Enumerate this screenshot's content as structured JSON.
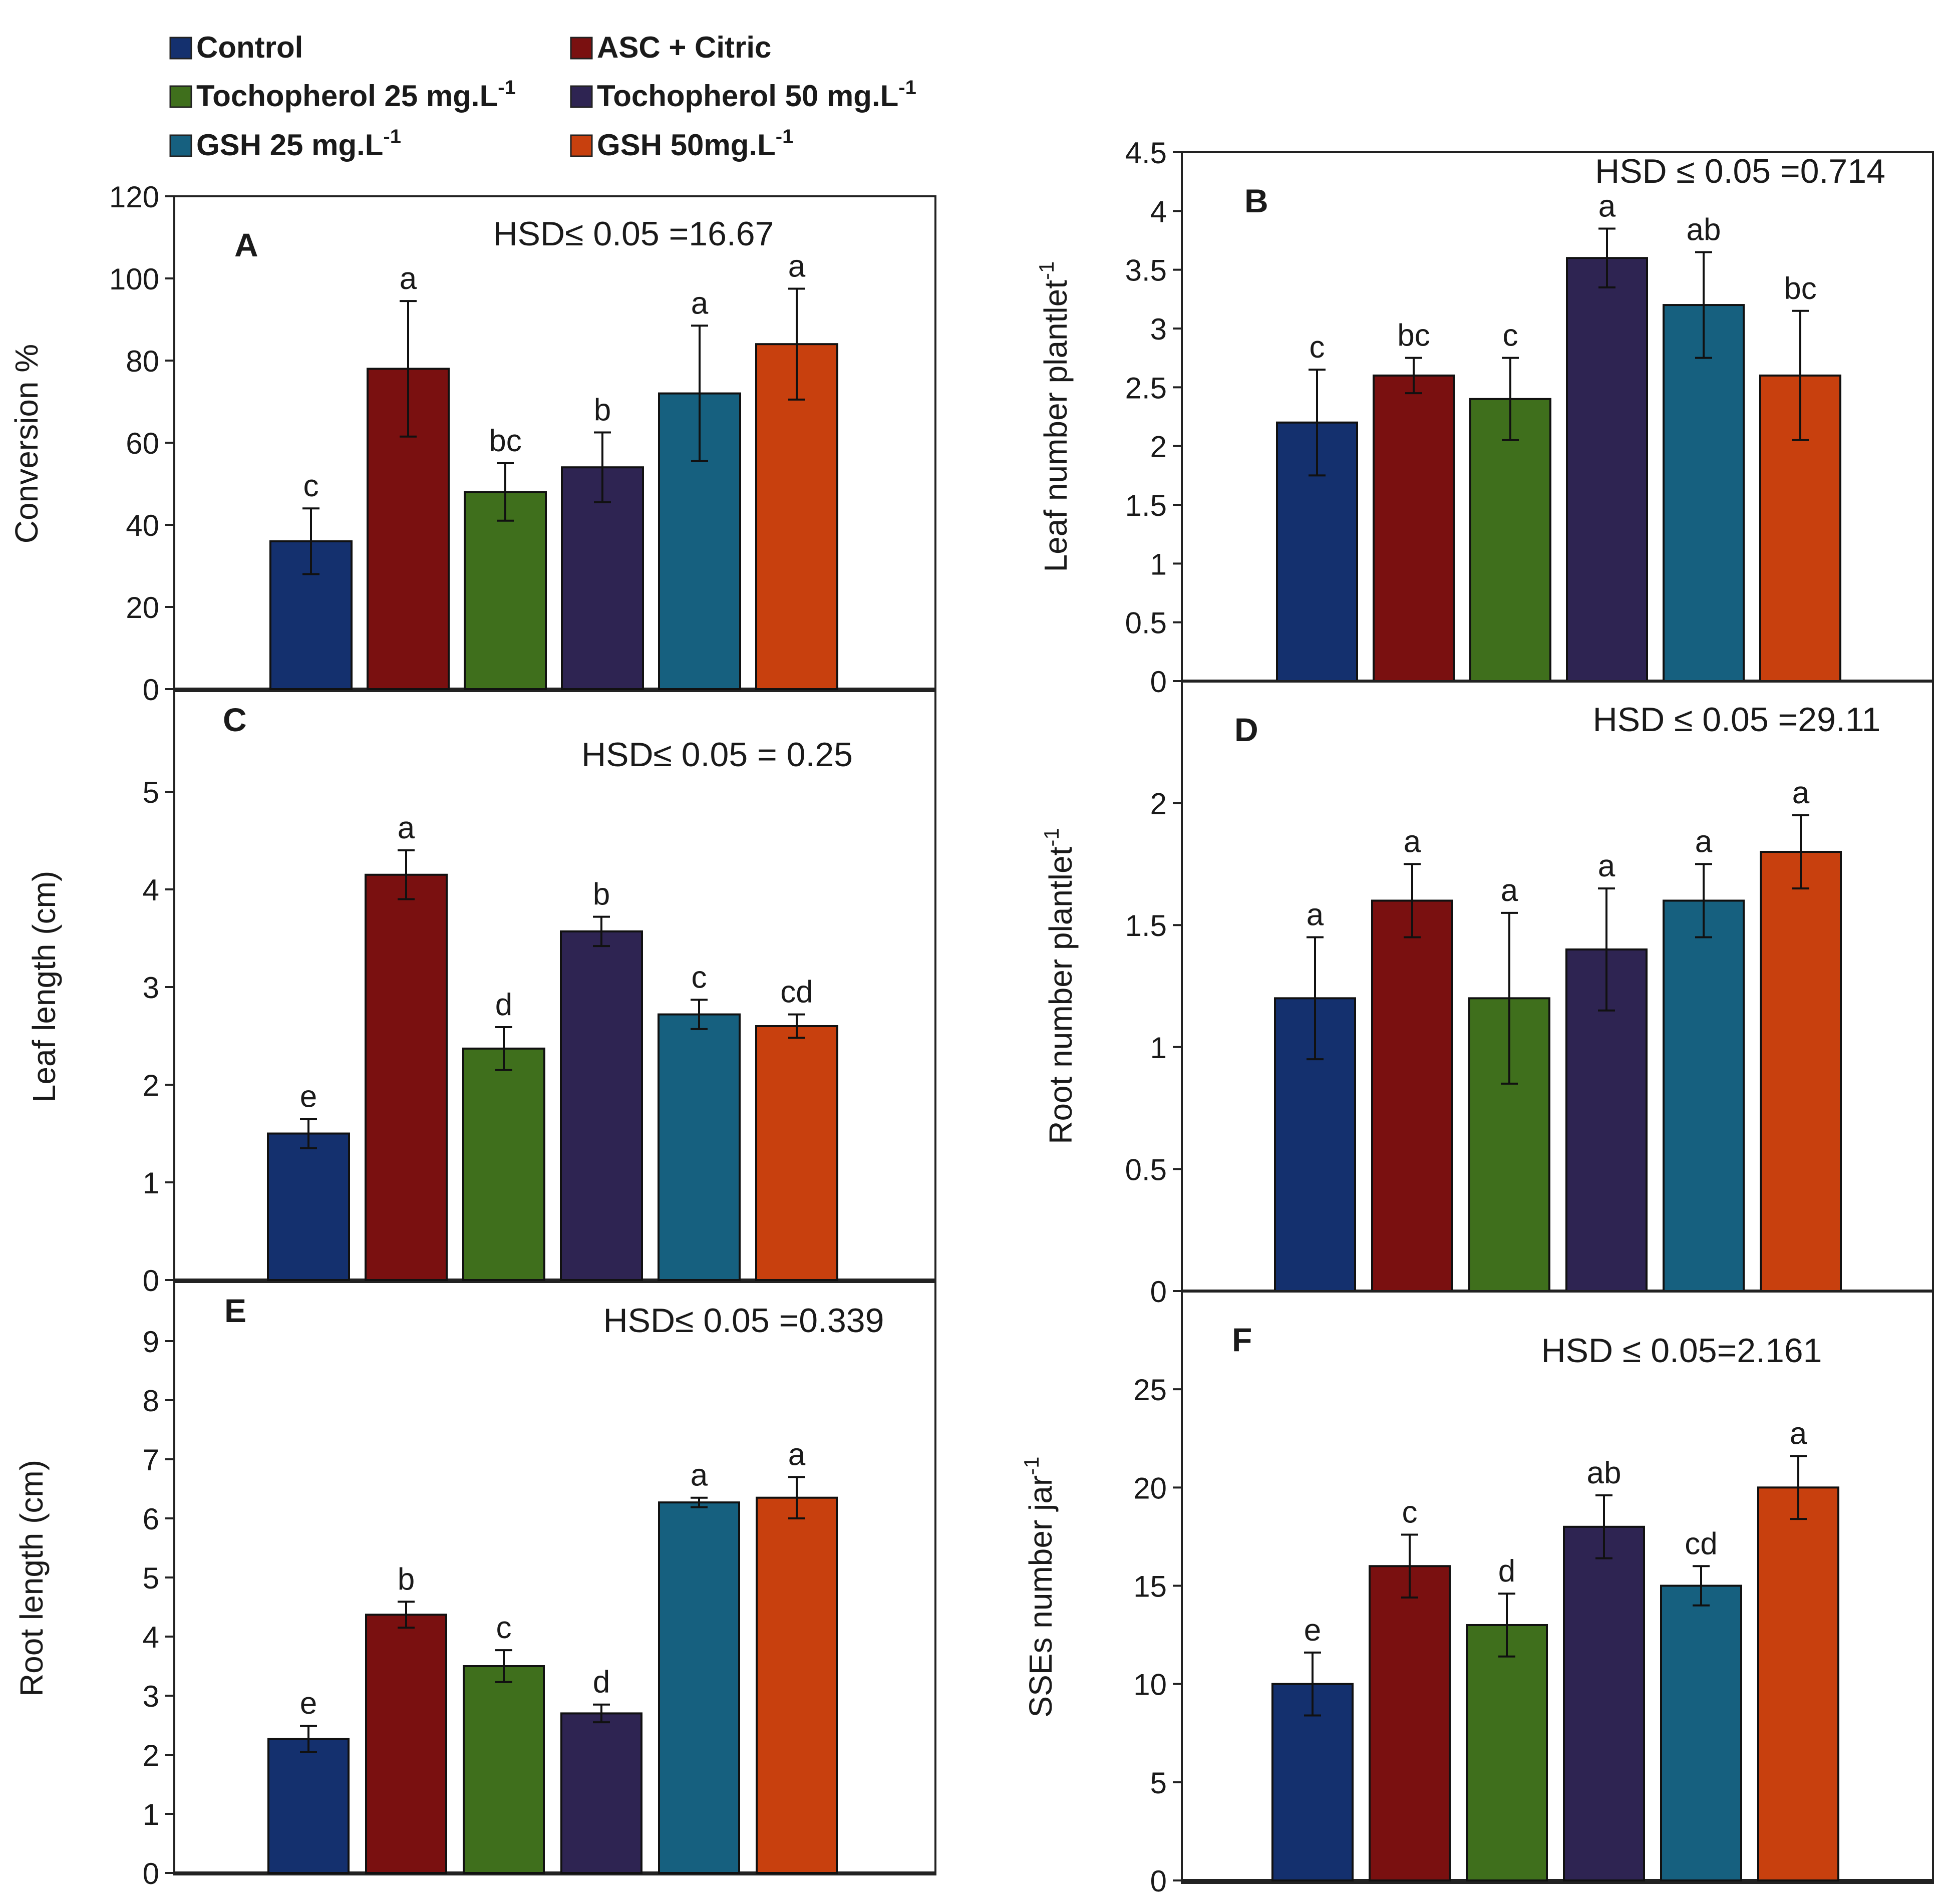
{
  "legend": [
    {
      "label": "Control",
      "sup": "",
      "color": "#14306e"
    },
    {
      "label": "ASC + Citric",
      "sup": "",
      "color": "#7a1010"
    },
    {
      "label": "Tochopherol 25 mg.L",
      "sup": "-1",
      "color": "#3f6f1c"
    },
    {
      "label": "Tochopherol 50 mg.L",
      "sup": "-1",
      "color": "#2e2452"
    },
    {
      "label": "GSH 25 mg.L",
      "sup": "-1",
      "color": "#16607f"
    },
    {
      "label": "GSH 50mg.L",
      "sup": "-1",
      "color": "#c8400e"
    }
  ],
  "chart_data": [
    {
      "type": "bar",
      "panel": "A",
      "ylabel": "Conversion %",
      "ylabel_sup": "",
      "hsd": "HSD≤ 0.05 =16.67",
      "categories": [
        "Control",
        "ASC + Citric",
        "Tochopherol 25 mg.L-1",
        "Tochopherol 50 mg.L-1",
        "GSH 25 mg.L-1",
        "GSH 50mg.L-1"
      ],
      "values": [
        36,
        78,
        48,
        54,
        72,
        84
      ],
      "errors": [
        8,
        16.5,
        7,
        8.5,
        16.5,
        13.5
      ],
      "letters": [
        "c",
        "a",
        "bc",
        "b",
        "a",
        "a"
      ],
      "ylim": [
        0,
        120
      ],
      "ticks": [
        "0",
        "20",
        "40",
        "60",
        "80",
        "100",
        "120"
      ]
    },
    {
      "type": "bar",
      "panel": "B",
      "ylabel": "Leaf number plantlet",
      "ylabel_sup": "-1",
      "hsd": "HSD ≤ 0.05 =0.714",
      "categories": [
        "Control",
        "ASC + Citric",
        "Tochopherol 25 mg.L-1",
        "Tochopherol 50 mg.L-1",
        "GSH 25 mg.L-1",
        "GSH 50mg.L-1"
      ],
      "values": [
        2.2,
        2.6,
        2.4,
        3.6,
        3.2,
        2.6
      ],
      "errors": [
        0.45,
        0.15,
        0.35,
        0.25,
        0.45,
        0.55
      ],
      "letters": [
        "c",
        "bc",
        "c",
        "a",
        "ab",
        "bc"
      ],
      "ylim": [
        0,
        4.5
      ],
      "ticks": [
        "0",
        "0.5",
        "1",
        "1.5",
        "2",
        "2.5",
        "3",
        "3.5",
        "4",
        "4.5"
      ]
    },
    {
      "type": "bar",
      "panel": "C",
      "ylabel": "Leaf length (cm)",
      "ylabel_sup": "",
      "hsd": "HSD≤ 0.05 = 0.25",
      "categories": [
        "Control",
        "ASC + Citric",
        "Tochopherol 25 mg.L-1",
        "Tochopherol 50 mg.L-1",
        "GSH 25 mg.L-1",
        "GSH 50mg.L-1"
      ],
      "values": [
        1.5,
        4.15,
        2.37,
        3.57,
        2.72,
        2.6
      ],
      "errors": [
        0.15,
        0.25,
        0.22,
        0.15,
        0.15,
        0.12
      ],
      "letters": [
        "e",
        "a",
        "d",
        "b",
        "c",
        "cd"
      ],
      "ylim": [
        0,
        6
      ],
      "ticks": [
        "0",
        "1",
        "2",
        "3",
        "4",
        "5"
      ]
    },
    {
      "type": "bar",
      "panel": "D",
      "ylabel": "Root number plantlet",
      "ylabel_sup": "-1",
      "hsd": "HSD ≤ 0.05 =29.11",
      "categories": [
        "Control",
        "ASC + Citric",
        "Tochopherol 25 mg.L-1",
        "Tochopherol 50 mg.L-1",
        "GSH 25 mg.L-1",
        "GSH 50mg.L-1"
      ],
      "values": [
        1.2,
        1.6,
        1.2,
        1.4,
        1.6,
        1.8
      ],
      "errors": [
        0.25,
        0.15,
        0.35,
        0.25,
        0.15,
        0.15
      ],
      "letters": [
        "a",
        "a",
        "a",
        "a",
        "a",
        "a"
      ],
      "ylim": [
        0,
        2.5
      ],
      "ticks": [
        "0",
        "0.5",
        "1",
        "1.5",
        "2"
      ]
    },
    {
      "type": "bar",
      "panel": "E",
      "ylabel": "Root length (cm)",
      "ylabel_sup": "",
      "hsd": "HSD≤ 0.05 =0.339",
      "categories": [
        "Control",
        "ASC + Citric",
        "Tochopherol 25 mg.L-1",
        "Tochopherol 50 mg.L-1",
        "GSH 25 mg.L-1",
        "GSH 50mg.L-1"
      ],
      "values": [
        2.27,
        4.37,
        3.5,
        2.7,
        6.27,
        6.35
      ],
      "errors": [
        0.22,
        0.22,
        0.27,
        0.15,
        0.08,
        0.35
      ],
      "letters": [
        "e",
        "b",
        "c",
        "d",
        "a",
        "a"
      ],
      "ylim": [
        0,
        10
      ],
      "ticks": [
        "0",
        "1",
        "2",
        "3",
        "4",
        "5",
        "6",
        "7",
        "8",
        "9"
      ]
    },
    {
      "type": "bar",
      "panel": "F",
      "ylabel": "SSEs number jar",
      "ylabel_sup": "-1",
      "hsd": "HSD ≤ 0.05=2.161",
      "categories": [
        "Control",
        "ASC + Citric",
        "Tochopherol 25 mg.L-1",
        "Tochopherol 50 mg.L-1",
        "GSH 25 mg.L-1",
        "GSH 50mg.L-1"
      ],
      "values": [
        10,
        16,
        13,
        18,
        15,
        20
      ],
      "errors": [
        1.6,
        1.6,
        1.6,
        1.6,
        1.0,
        1.6
      ],
      "letters": [
        "e",
        "c",
        "d",
        "ab",
        "cd",
        "a"
      ],
      "ylim": [
        0,
        30
      ],
      "ticks": [
        "0",
        "5",
        "10",
        "15",
        "20",
        "25"
      ]
    }
  ]
}
